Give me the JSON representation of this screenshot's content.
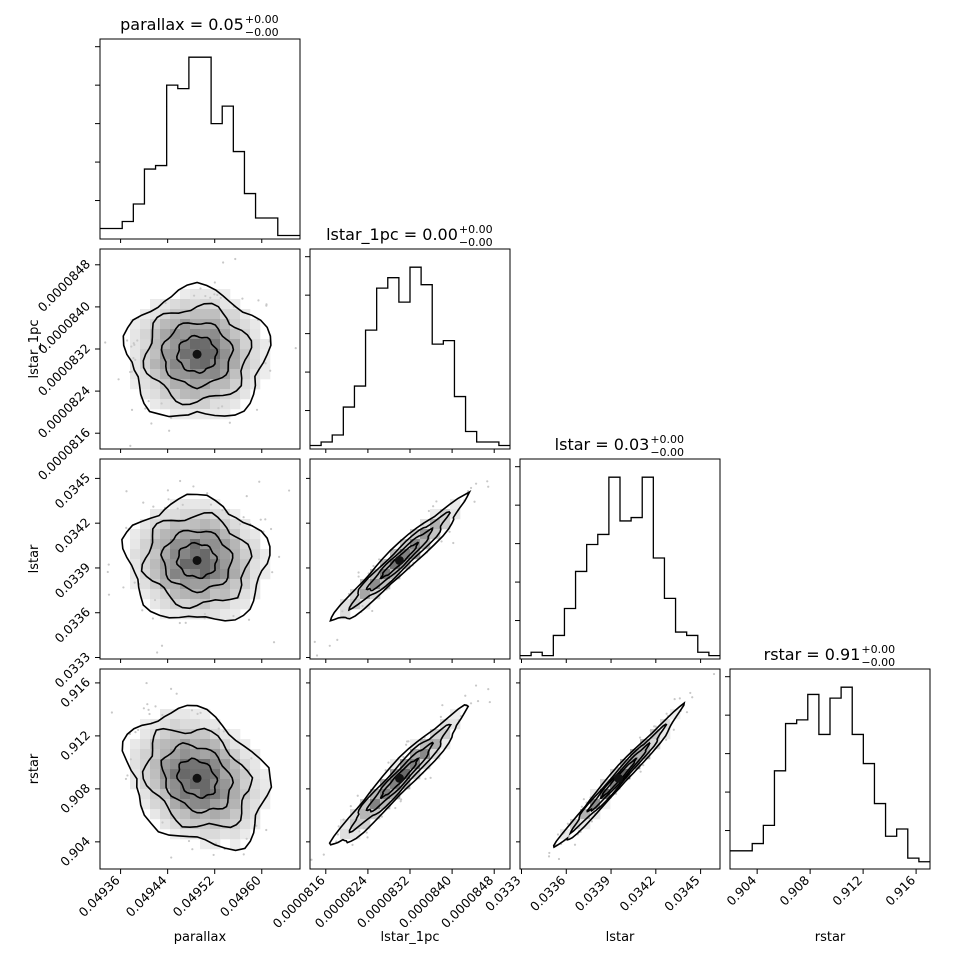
{
  "chart_data": {
    "type": "corner",
    "parameters": [
      {
        "name": "parallax",
        "xlabel": "parallax",
        "title": {
          "prefix": "parallax = ",
          "value": "0.05",
          "plus": "+0.00",
          "minus": "−0.00"
        },
        "range": [
          0.049325,
          0.049665
        ],
        "ticks": [
          0.04936,
          0.04944,
          0.04952,
          0.0496
        ],
        "tick_labels": [
          "0.04936",
          "0.04944",
          "0.04952",
          "0.04960"
        ],
        "hist": [
          3,
          3,
          5,
          10,
          20,
          21,
          44,
          43,
          52,
          52,
          33,
          38,
          25,
          13,
          6,
          6,
          1,
          1
        ]
      },
      {
        "name": "lstar_1pc",
        "xlabel": "lstar_1pc",
        "title": {
          "prefix": "lstar_1pc = ",
          "value": "0.00",
          "plus": "+0.00",
          "minus": "−0.00"
        },
        "range": [
          8.13e-05,
          8.51e-05
        ],
        "ticks": [
          8.16e-05,
          8.24e-05,
          8.32e-05,
          8.4e-05,
          8.48e-05
        ],
        "tick_labels": [
          "0.0000816",
          "0.0000824",
          "0.0000832",
          "0.0000840",
          "0.0000848"
        ],
        "hist": [
          1,
          2,
          4,
          12,
          18,
          34,
          46,
          49,
          42,
          52,
          47,
          30,
          31,
          15,
          5,
          2,
          2,
          1
        ]
      },
      {
        "name": "lstar",
        "xlabel": "lstar",
        "title": {
          "prefix": "lstar = ",
          "value": "0.03",
          "plus": "+0.00",
          "minus": "−0.00"
        },
        "range": [
          0.03329,
          0.03463
        ],
        "ticks": [
          0.0333,
          0.0336,
          0.0339,
          0.0342,
          0.0345
        ],
        "tick_labels": [
          "0.0333",
          "0.0336",
          "0.0339",
          "0.0342",
          "0.0345"
        ],
        "hist": [
          1,
          2,
          1,
          7,
          15,
          26,
          34,
          37,
          54,
          41,
          42,
          54,
          30,
          18,
          8,
          7,
          2,
          1
        ]
      },
      {
        "name": "rstar",
        "xlabel": "rstar",
        "title": {
          "prefix": "rstar = ",
          "value": "0.91",
          "plus": "+0.00",
          "minus": "−0.00"
        },
        "range": [
          0.90195,
          0.91705
        ],
        "ticks": [
          0.904,
          0.908,
          0.912,
          0.916
        ],
        "tick_labels": [
          "0.904",
          "0.908",
          "0.912",
          "0.916"
        ],
        "hist": [
          5,
          5,
          7,
          12,
          27,
          40,
          41,
          48,
          37,
          47,
          50,
          37,
          29,
          18,
          9,
          11,
          3,
          2
        ]
      }
    ],
    "pairs": [
      {
        "row": 1,
        "col": 0,
        "mean": [
          0.04949,
          8.31e-05
        ],
        "sd": [
          5.8e-05,
          6e-07
        ],
        "rho": 0.0
      },
      {
        "row": 2,
        "col": 0,
        "mean": [
          0.04949,
          0.03395
        ],
        "sd": [
          5.8e-05,
          0.0002
        ],
        "rho": -0.05
      },
      {
        "row": 2,
        "col": 1,
        "mean": [
          8.3e-05,
          0.03395
        ],
        "sd": [
          6e-07,
          0.0002
        ],
        "rho": 0.96
      },
      {
        "row": 3,
        "col": 0,
        "mean": [
          0.04949,
          0.9088
        ],
        "sd": [
          5.8e-05,
          0.0025
        ],
        "rho": -0.25
      },
      {
        "row": 3,
        "col": 1,
        "mean": [
          8.3e-05,
          0.9088
        ],
        "sd": [
          6e-07,
          0.0025
        ],
        "rho": 0.96
      },
      {
        "row": 3,
        "col": 2,
        "mean": [
          0.03395,
          0.9088
        ],
        "sd": [
          0.0002,
          0.0025
        ],
        "rho": 0.985
      }
    ]
  }
}
